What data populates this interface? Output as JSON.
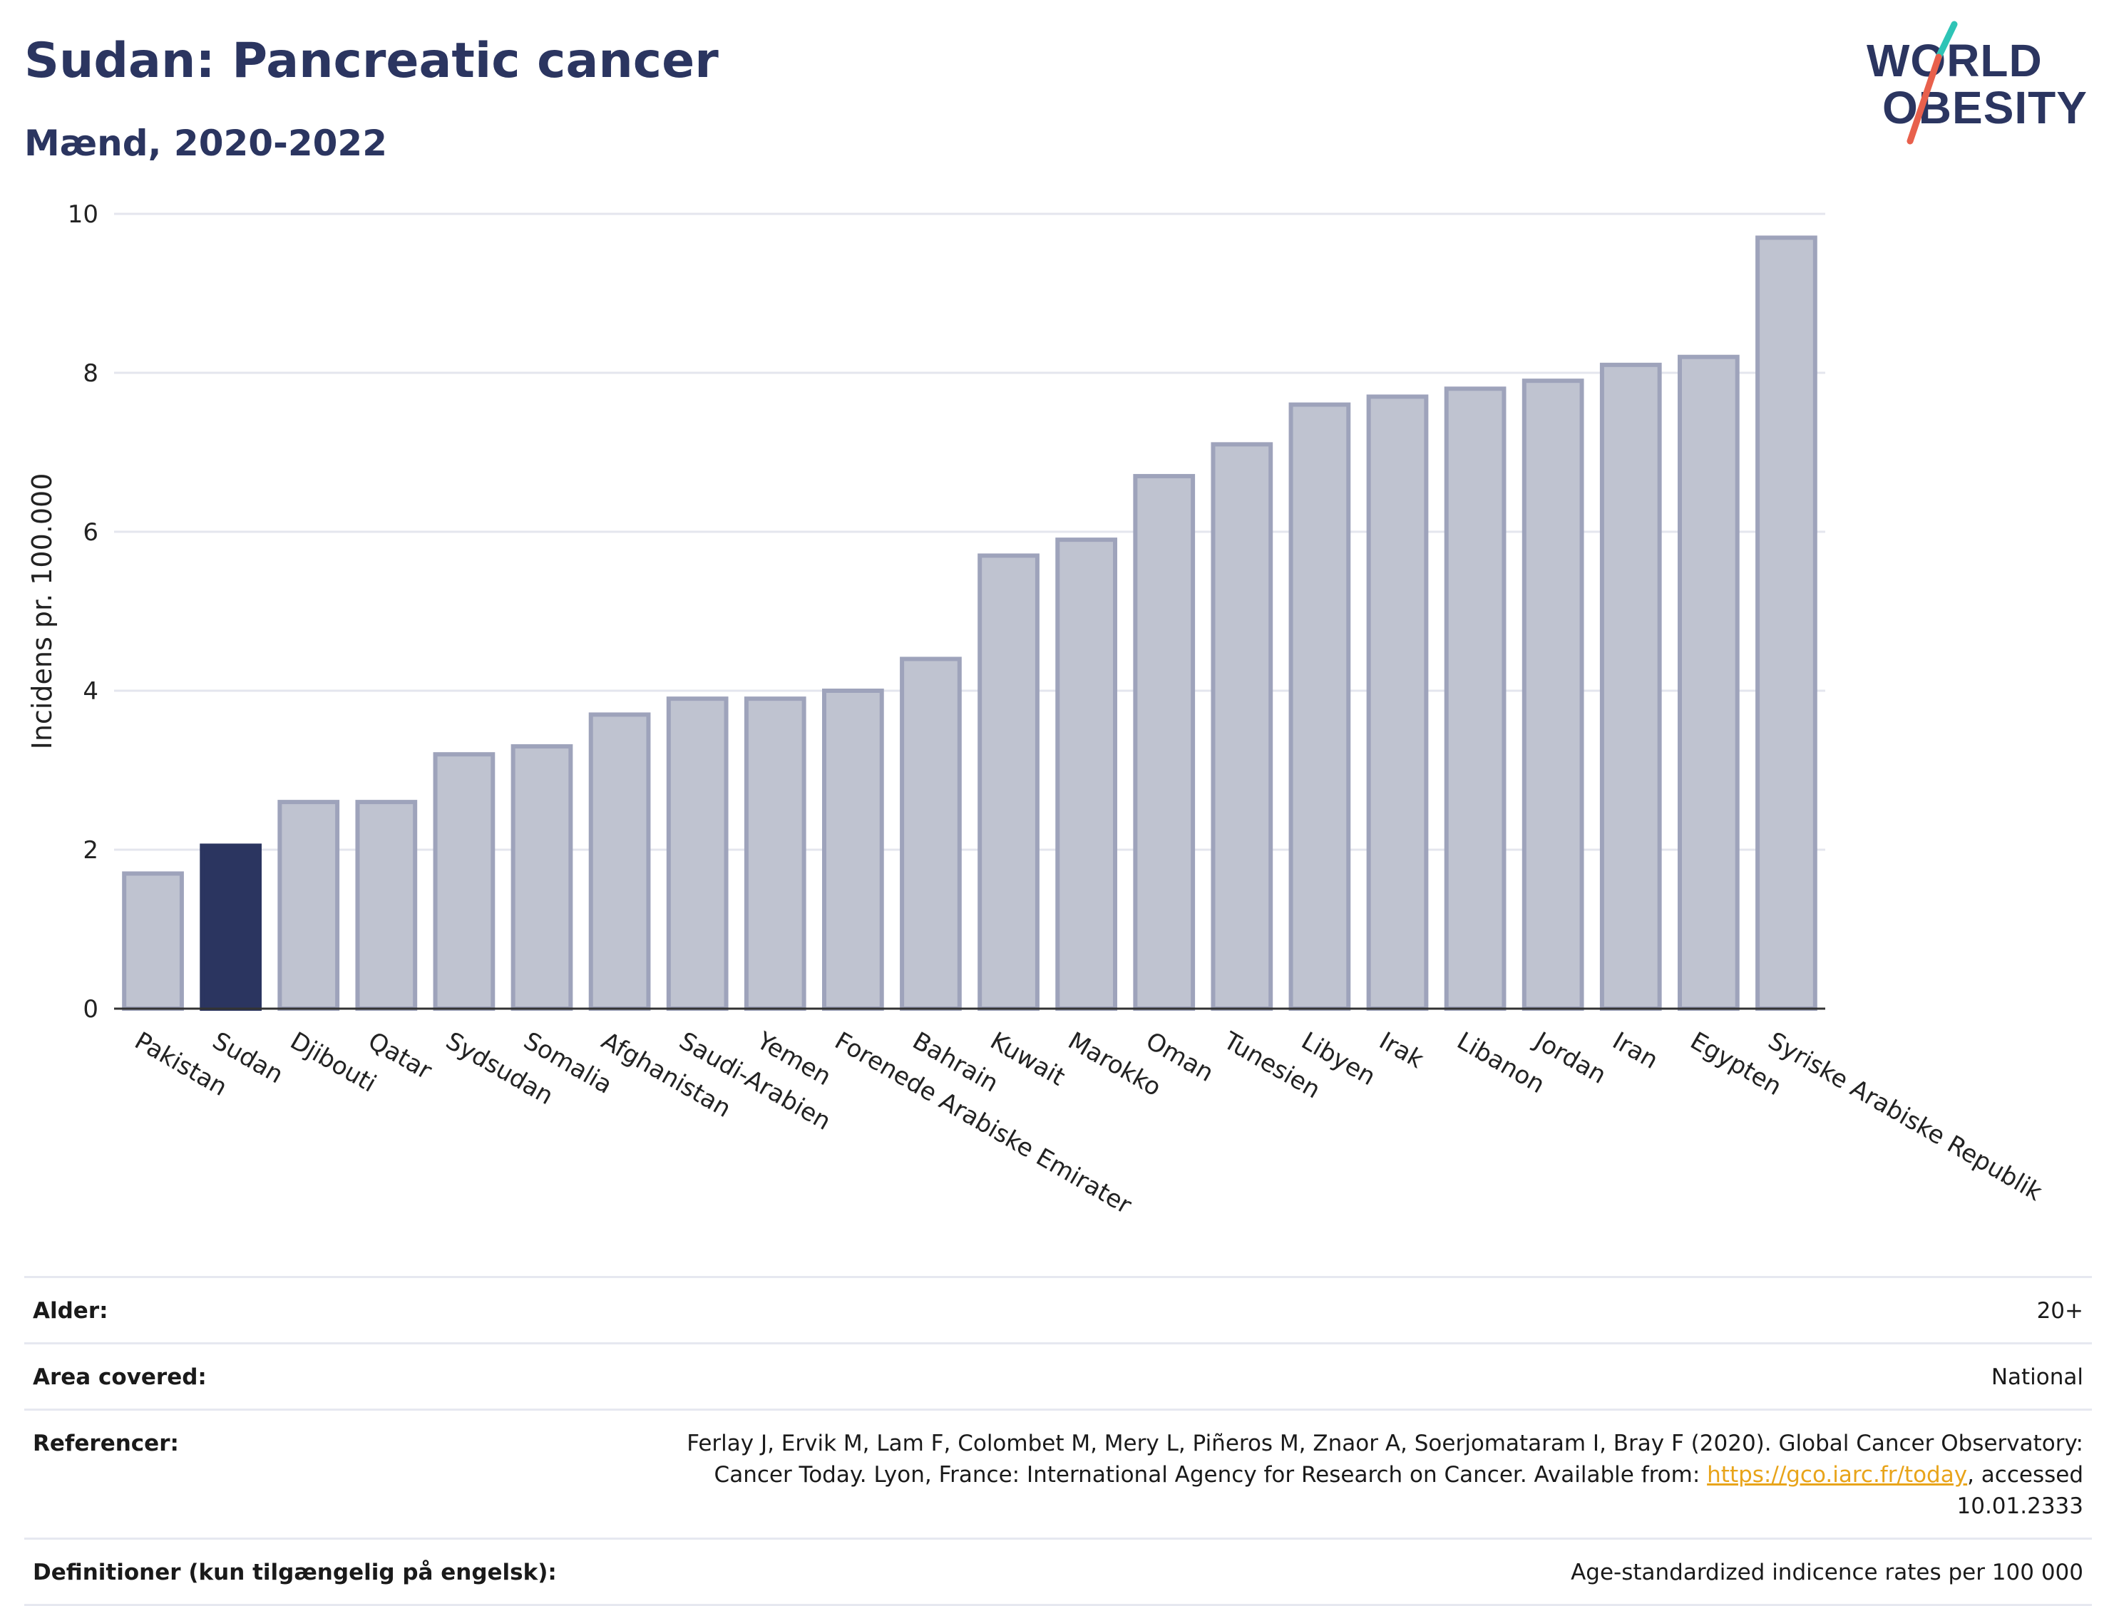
{
  "header": {
    "title": "Sudan: Pancreatic cancer",
    "subtitle": "Mænd, 2020-2022"
  },
  "logo": {
    "line1": "WORLD",
    "line2": "OBESITY",
    "slash_colors": [
      "#2ec4b6",
      "#e8604c"
    ]
  },
  "colors": {
    "bar": "#bfc3d0",
    "bar_border": "#9ea3bb",
    "highlight": "#2b3560",
    "grid": "#e4e6ee",
    "axis": "#333333"
  },
  "chart_data": {
    "type": "bar",
    "ylabel": "Incidens pr. 100.000",
    "ylim": [
      0,
      10
    ],
    "yticks": [
      "0",
      "2",
      "4",
      "6",
      "8",
      "10"
    ],
    "grid": true,
    "highlight": "Sudan",
    "categories": [
      "Pakistan",
      "Sudan",
      "Djibouti",
      "Qatar",
      "Sydsudan",
      "Somalia",
      "Afghanistan",
      "Saudi-Arabien",
      "Yemen",
      "Forenede Arabiske Emirater",
      "Bahrain",
      "Kuwait",
      "Marokko",
      "Oman",
      "Tunesien",
      "Libyen",
      "Irak",
      "Libanon",
      "Jordan",
      "Iran",
      "Egypten",
      "Syriske Arabiske Republik"
    ],
    "values": [
      1.7,
      2.05,
      2.6,
      2.6,
      3.2,
      3.3,
      3.7,
      3.9,
      3.9,
      4.0,
      4.4,
      5.7,
      5.9,
      6.7,
      7.1,
      7.6,
      7.7,
      7.8,
      7.9,
      8.1,
      8.2,
      9.7
    ]
  },
  "info": {
    "age_label": "Alder:",
    "age_value": "20+",
    "area_label": "Area covered:",
    "area_value": "National",
    "ref_label": "Referencer:",
    "ref_text_1": "Ferlay J, Ervik M, Lam F, Colombet M, Mery L, Piñeros M, Znaor A, Soerjomataram I, Bray F (2020). Global Cancer Observatory: Cancer Today. Lyon, France: International Agency for Research on Cancer. Available from: ",
    "ref_link": "https://gco.iarc.fr/today",
    "ref_text_2": ", accessed 10.01.2333",
    "def_label": "Definitioner (kun tilgængelig på engelsk):",
    "def_value": "Age-standardized indicence rates per 100 000"
  }
}
